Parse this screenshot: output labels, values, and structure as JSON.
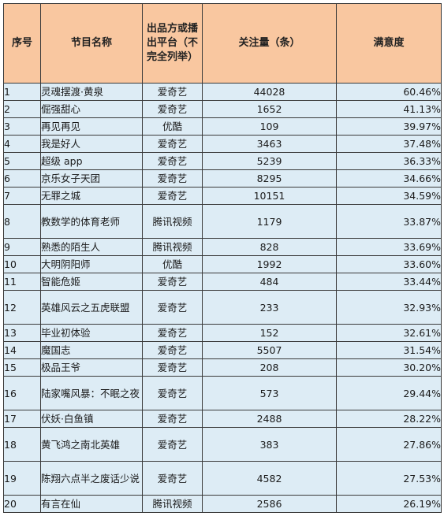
{
  "headers": {
    "index": "序号",
    "name": "节目名称",
    "platform": "出品方或播出平台（不完全列举）",
    "followers": "关注量（条）",
    "satisfaction": "满意度"
  },
  "rows": [
    {
      "index": "1",
      "name": "灵魂摆渡·黄泉",
      "platform": "爱奇艺",
      "followers": "44028",
      "satisfaction": "60.46%"
    },
    {
      "index": "2",
      "name": "倔强甜心",
      "platform": "爱奇艺",
      "followers": "1652",
      "satisfaction": "41.13%"
    },
    {
      "index": "3",
      "name": "再见再见",
      "platform": "优酷",
      "followers": "109",
      "satisfaction": "39.97%"
    },
    {
      "index": "4",
      "name": "我是好人",
      "platform": "爱奇艺",
      "followers": "3463",
      "satisfaction": "37.48%"
    },
    {
      "index": "5",
      "name": "超级 app",
      "platform": "爱奇艺",
      "followers": "5239",
      "satisfaction": "36.33%"
    },
    {
      "index": "6",
      "name": "京乐女子天团",
      "platform": "爱奇艺",
      "followers": "8295",
      "satisfaction": "34.66%"
    },
    {
      "index": "7",
      "name": "无罪之城",
      "platform": "爱奇艺",
      "followers": "10151",
      "satisfaction": "34.59%"
    },
    {
      "index": "8",
      "name": "教数学的体育老师",
      "platform": "腾讯视频",
      "followers": "1179",
      "satisfaction": "33.87%"
    },
    {
      "index": "9",
      "name": "熟悉的陌生人",
      "platform": "腾讯视频",
      "followers": "828",
      "satisfaction": "33.69%"
    },
    {
      "index": "10",
      "name": "大明阴阳师",
      "platform": "优酷",
      "followers": "1992",
      "satisfaction": "33.60%"
    },
    {
      "index": "11",
      "name": "智能危姬",
      "platform": "爱奇艺",
      "followers": "484",
      "satisfaction": "33.44%"
    },
    {
      "index": "12",
      "name": "英雄风云之五虎联盟",
      "platform": "爱奇艺",
      "followers": "233",
      "satisfaction": "32.93%"
    },
    {
      "index": "13",
      "name": "毕业初体验",
      "platform": "爱奇艺",
      "followers": "152",
      "satisfaction": "32.61%"
    },
    {
      "index": "14",
      "name": "魔国志",
      "platform": "爱奇艺",
      "followers": "5507",
      "satisfaction": "31.54%"
    },
    {
      "index": "15",
      "name": "极品王爷",
      "platform": "爱奇艺",
      "followers": "208",
      "satisfaction": "30.20%"
    },
    {
      "index": "16",
      "name": "陆家嘴风暴：不眠之夜",
      "platform": "爱奇艺",
      "followers": "573",
      "satisfaction": "29.44%"
    },
    {
      "index": "17",
      "name": "伏妖·白鱼镇",
      "platform": "爱奇艺",
      "followers": "2488",
      "satisfaction": "28.22%"
    },
    {
      "index": "18",
      "name": "黄飞鸿之南北英雄",
      "platform": "爱奇艺",
      "followers": "383",
      "satisfaction": "27.86%"
    },
    {
      "index": "19",
      "name": "陈翔六点半之废话少说",
      "platform": "爱奇艺",
      "followers": "4582",
      "satisfaction": "27.53%"
    },
    {
      "index": "20",
      "name": "有言在仙",
      "platform": "腾讯视频",
      "followers": "2586",
      "satisfaction": "26.19%"
    }
  ]
}
